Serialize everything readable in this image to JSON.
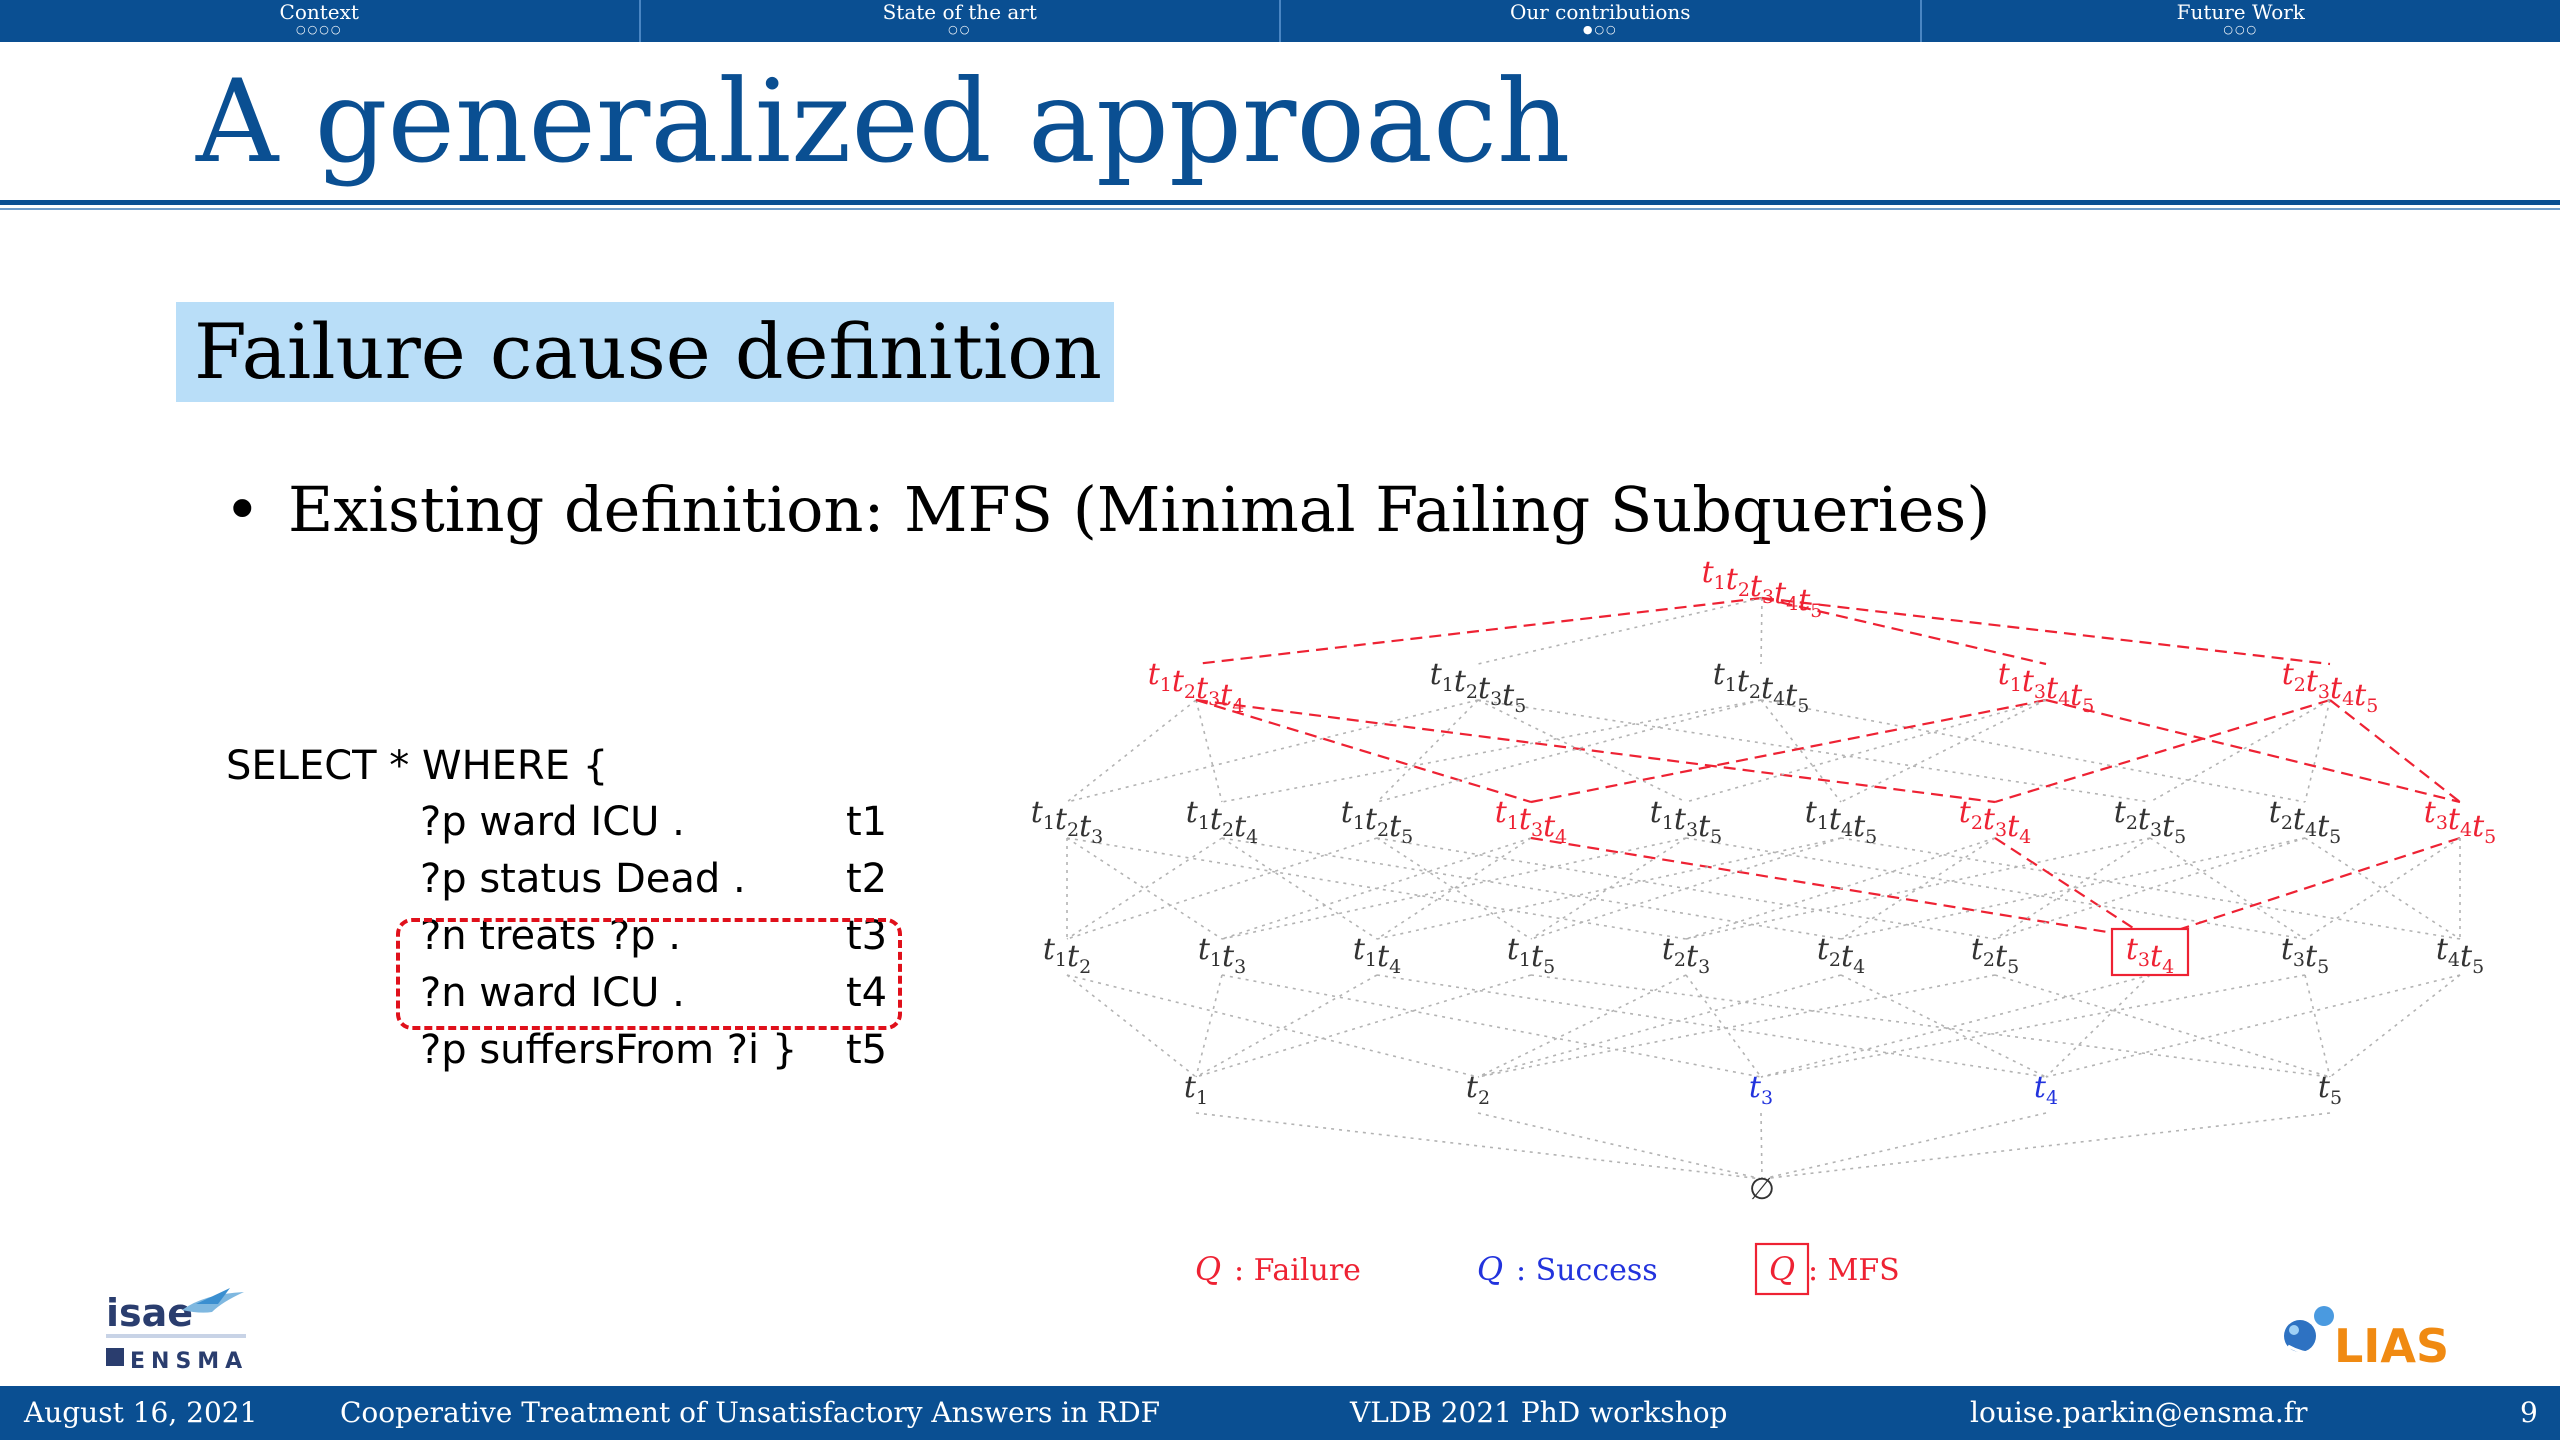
{
  "nav": {
    "sections": [
      {
        "label": "Context",
        "dots": "○○○○"
      },
      {
        "label": "State of the art",
        "dots": "○○"
      },
      {
        "label": "Our contributions",
        "dots": "●○○"
      },
      {
        "label": "Future Work",
        "dots": "○○○"
      }
    ],
    "active_index": 2
  },
  "slide": {
    "title": "A generalized approach",
    "block_title": "Failure cause definition",
    "bullet": "Existing definition: MFS (Minimal Failing Subqueries)"
  },
  "query": {
    "header": "SELECT * WHERE {",
    "rows": [
      {
        "text": "?p ward ICU .",
        "tag": "t1"
      },
      {
        "text": "?p status Dead .",
        "tag": "t2"
      },
      {
        "text": "?n treats ?p .",
        "tag": "t3"
      },
      {
        "text": "?n ward ICU .",
        "tag": "t4"
      },
      {
        "text": "?p suffersFrom ?i }",
        "tag": "t5"
      }
    ]
  },
  "lattice": {
    "colors": {
      "failure": "#ee2233",
      "success": "#2233dd",
      "neutral": "#333333",
      "edge_neutral": "#b3b3b3"
    },
    "levels": [
      [
        {
          "label": "t1t2t3t4t5",
          "status": "failure"
        }
      ],
      [
        {
          "label": "t1t2t3t4",
          "status": "failure"
        },
        {
          "label": "t1t2t3t5",
          "status": "neutral"
        },
        {
          "label": "t1t2t4t5",
          "status": "neutral"
        },
        {
          "label": "t1t3t4t5",
          "status": "failure"
        },
        {
          "label": "t2t3t4t5",
          "status": "failure"
        }
      ],
      [
        {
          "label": "t1t2t3",
          "status": "neutral"
        },
        {
          "label": "t1t2t4",
          "status": "neutral"
        },
        {
          "label": "t1t2t5",
          "status": "neutral"
        },
        {
          "label": "t1t3t4",
          "status": "failure"
        },
        {
          "label": "t1t3t5",
          "status": "neutral"
        },
        {
          "label": "t1t4t5",
          "status": "neutral"
        },
        {
          "label": "t2t3t4",
          "status": "failure"
        },
        {
          "label": "t2t3t5",
          "status": "neutral"
        },
        {
          "label": "t2t4t5",
          "status": "neutral"
        },
        {
          "label": "t3t4t5",
          "status": "failure"
        }
      ],
      [
        {
          "label": "t1t2",
          "status": "neutral"
        },
        {
          "label": "t1t3",
          "status": "neutral"
        },
        {
          "label": "t1t4",
          "status": "neutral"
        },
        {
          "label": "t1t5",
          "status": "neutral"
        },
        {
          "label": "t2t3",
          "status": "neutral"
        },
        {
          "label": "t2t4",
          "status": "neutral"
        },
        {
          "label": "t2t5",
          "status": "neutral"
        },
        {
          "label": "t3t4",
          "status": "mfs"
        },
        {
          "label": "t3t5",
          "status": "neutral"
        },
        {
          "label": "t4t5",
          "status": "neutral"
        }
      ],
      [
        {
          "label": "t1",
          "status": "neutral"
        },
        {
          "label": "t2",
          "status": "neutral"
        },
        {
          "label": "t3",
          "status": "success"
        },
        {
          "label": "t4",
          "status": "success"
        },
        {
          "label": "t5",
          "status": "neutral"
        }
      ],
      [
        {
          "label": "∅",
          "status": "neutral"
        }
      ]
    ],
    "legend": {
      "failure": {
        "symbol": "Q",
        "text": ": Failure"
      },
      "success": {
        "symbol": "Q",
        "text": ": Success"
      },
      "mfs": {
        "symbol": "Q",
        "text": ": MFS"
      }
    }
  },
  "logos": {
    "isae_text": "isae",
    "ensma_text": "ENSMA",
    "lias_text": "LIAS"
  },
  "footer": {
    "date": "August 16, 2021",
    "talk_title": "Cooperative Treatment of Unsatisfactory Answers in RDF",
    "venue": "VLDB 2021 PhD workshop",
    "email": "louise.parkin@ensma.fr",
    "page": "9"
  }
}
